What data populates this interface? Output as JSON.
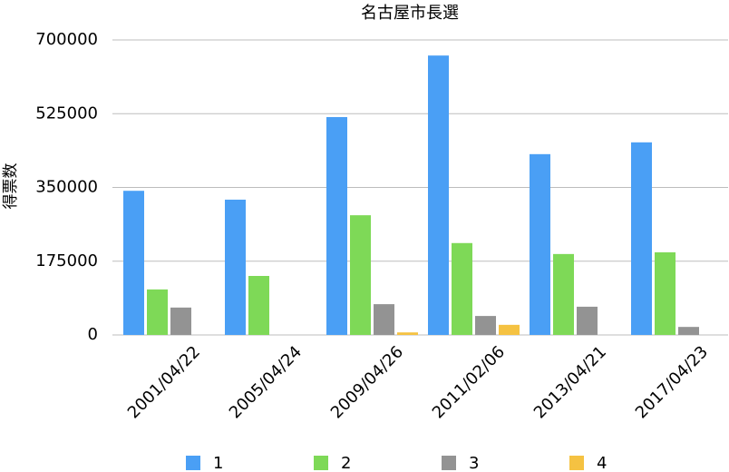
{
  "chart_data": {
    "type": "bar",
    "title": "名古屋市長選",
    "y_label": "得票数",
    "categories": [
      "2001/04/22",
      "2005/04/24",
      "2009/04/26",
      "2011/02/06",
      "2013/04/21",
      "2017/04/23"
    ],
    "series": [
      {
        "name": "1",
        "color": "#4a9ff5",
        "values": [
          342000,
          321000,
          517000,
          663000,
          429000,
          457000
        ]
      },
      {
        "name": "2",
        "color": "#7ed957",
        "values": [
          108000,
          140000,
          284000,
          218000,
          192000,
          196000
        ]
      },
      {
        "name": "3",
        "color": "#939393",
        "values": [
          65000,
          null,
          73000,
          45000,
          67000,
          19000
        ]
      },
      {
        "name": "4",
        "color": "#f5c242",
        "values": [
          null,
          null,
          6000,
          24000,
          null,
          null
        ]
      }
    ],
    "ylim": [
      0,
      700000
    ],
    "yticks": [
      0,
      175000,
      350000,
      525000,
      700000
    ],
    "grid": true
  }
}
